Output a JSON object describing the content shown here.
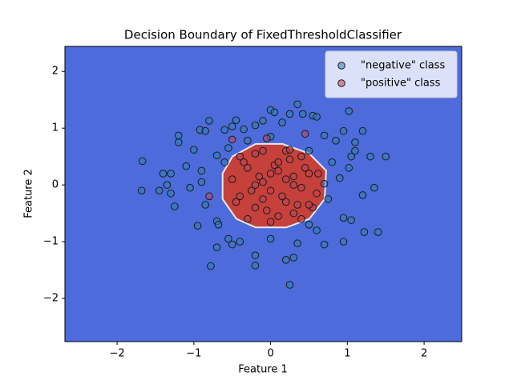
{
  "chart_data": {
    "type": "scatter",
    "title": "Decision Boundary of FixedThresholdClassifier",
    "x_label": "Feature 1",
    "y_label": "Feature 2",
    "xlim": [
      -2.68,
      2.49
    ],
    "ylim": [
      -2.76,
      2.44
    ],
    "xticks": [
      {
        "value": -2,
        "label": "−2"
      },
      {
        "value": -1,
        "label": "−1"
      },
      0,
      1,
      2
    ],
    "yticks": [
      {
        "value": -2,
        "label": "−2"
      },
      {
        "value": -1,
        "label": "−1"
      },
      0,
      1,
      2
    ],
    "legend": "upper right",
    "series": [
      {
        "name": "\"negative\" class",
        "color": "#2f7fb8",
        "x": [
          -1.67,
          -1.68,
          -1.4,
          -1.3,
          -1.2,
          -1.2,
          -1.25,
          -1.1,
          -1.0,
          -0.92,
          -0.8,
          -0.85,
          -0.95,
          -0.78,
          -0.7,
          -0.68,
          -0.6,
          -0.55,
          -0.5,
          -0.45,
          -0.35,
          -0.2,
          -0.1,
          0,
          0.05,
          0.15,
          0.25,
          0.35,
          0.42,
          0.55,
          0.6,
          0.7,
          0.85,
          0.95,
          1.02,
          1.1,
          1.05,
          1.2,
          1.3,
          1.5,
          1.35,
          1.2,
          1.4,
          1.22,
          1.05,
          0.95,
          0.95,
          0.7,
          0.6,
          0.5,
          0.35,
          0.3,
          0.2,
          0.25,
          0,
          -0.2,
          -0.2,
          -0.4,
          -0.5,
          -0.55,
          -0.7,
          -0.85,
          -0.9,
          -1.05,
          -1.35,
          -1.45,
          -1.3,
          -0.9,
          -0.7,
          -0.6,
          0.8,
          0.9,
          1.02,
          0.75,
          0.7,
          1.1,
          0.5,
          0,
          -0.3
        ],
        "values": [
          0.42,
          -0.1,
          0.2,
          0.2,
          0.75,
          0.87,
          -0.38,
          0.33,
          0.62,
          0.97,
          1.13,
          0.95,
          -0.72,
          -1.43,
          -0.64,
          -0.7,
          0.97,
          0.65,
          1.03,
          1.14,
          0.98,
          1.05,
          1.13,
          1.32,
          1.28,
          1.1,
          1.25,
          1.42,
          1.25,
          1.22,
          1.2,
          0.87,
          0.78,
          0.95,
          1.3,
          0.75,
          0.5,
          0.95,
          0.5,
          0.5,
          -0.05,
          -0.18,
          -0.83,
          -0.83,
          -0.62,
          -0.58,
          -1.0,
          -1.05,
          -0.8,
          -0.7,
          -1.03,
          -1.28,
          -1.32,
          -1.76,
          -0.95,
          -1.24,
          -1.42,
          -1.0,
          -1.05,
          -0.95,
          -1.1,
          -0.35,
          0.05,
          -0.05,
          0,
          -0.1,
          -0.15,
          0.25,
          0.52,
          0.4,
          0.4,
          0.12,
          0.3,
          -0.25,
          0.02,
          0.6,
          0.6,
          0.85,
          0.78
        ]
      },
      {
        "name": "\"positive\" class",
        "color": "#c2424e",
        "x": [
          -0.5,
          -0.4,
          -0.3,
          -0.2,
          -0.1,
          0,
          0.1,
          0.2,
          0.3,
          0.4,
          0.5,
          0.6,
          -0.45,
          -0.35,
          -0.25,
          -0.15,
          -0.05,
          0.05,
          0.15,
          0.25,
          0.35,
          0.45,
          0.55,
          -0.3,
          -0.2,
          -0.1,
          0,
          0.1,
          0.2,
          0.3,
          0.4,
          -0.4,
          -0.2,
          0,
          0.2,
          0.4,
          -0.1,
          0.1,
          0.3,
          -0.8,
          0.62,
          0.5,
          -0.5,
          0.45,
          -0.05,
          0.25
        ],
        "values": [
          0.1,
          -0.2,
          0.3,
          -0.4,
          0.05,
          -0.1,
          0.25,
          -0.3,
          0.15,
          -0.05,
          0.2,
          -0.15,
          -0.3,
          0.4,
          -0.1,
          0.15,
          -0.45,
          0.35,
          -0.2,
          0.45,
          -0.35,
          0.3,
          -0.4,
          -0.6,
          0.55,
          0.6,
          -0.65,
          -0.55,
          0.1,
          -0.5,
          0.5,
          0.5,
          0.0,
          0.2,
          0.6,
          -0.6,
          -0.25,
          0.4,
          0.0,
          -0.2,
          0.2,
          -0.35,
          0.8,
          0.9,
          0.82,
          0.62
        ]
      }
    ]
  }
}
